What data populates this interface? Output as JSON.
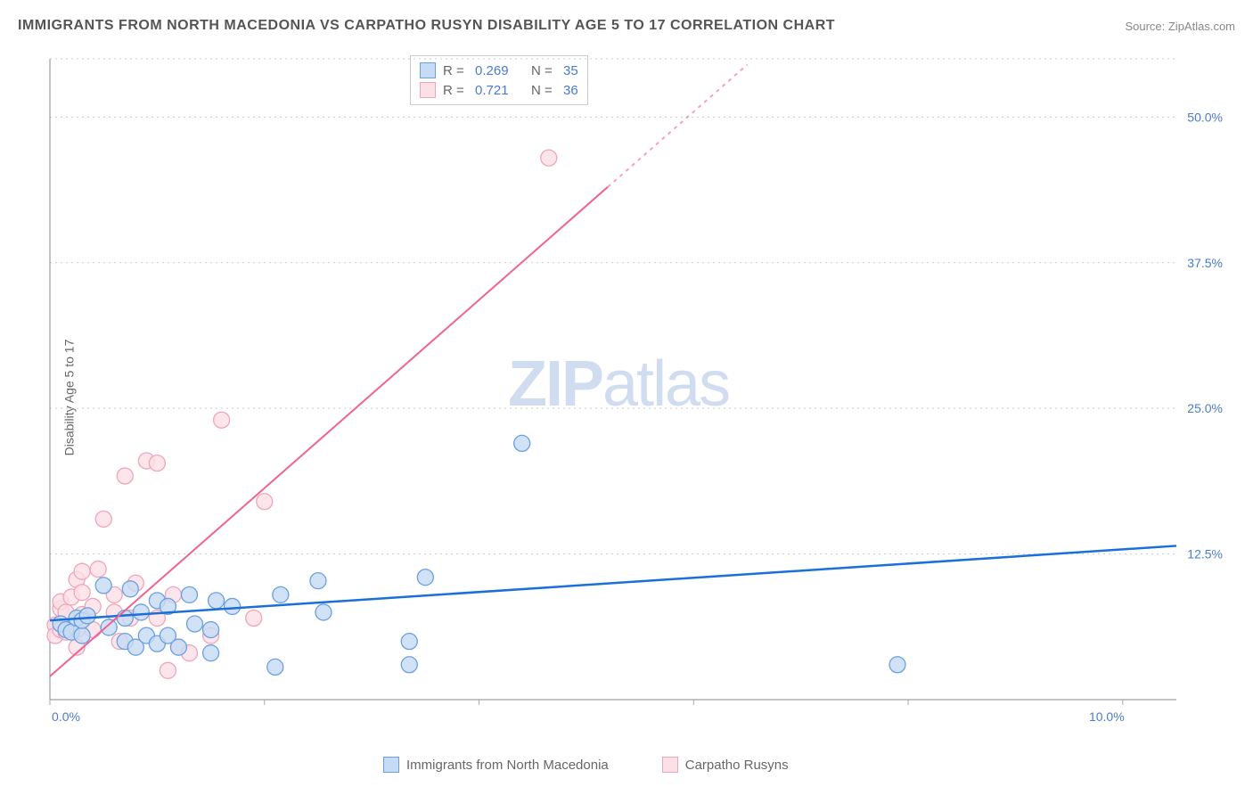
{
  "title": "IMMIGRANTS FROM NORTH MACEDONIA VS CARPATHO RUSYN DISABILITY AGE 5 TO 17 CORRELATION CHART",
  "source": "Source: ZipAtlas.com",
  "ylabel": "Disability Age 5 to 17",
  "watermark_bold": "ZIP",
  "watermark_rest": "atlas",
  "chart": {
    "type": "scatter",
    "xlim": [
      0,
      10.5
    ],
    "ylim": [
      0,
      55
    ],
    "yticks": [
      {
        "v": 12.5,
        "label": "12.5%"
      },
      {
        "v": 25.0,
        "label": "25.0%"
      },
      {
        "v": 37.5,
        "label": "37.5%"
      },
      {
        "v": 50.0,
        "label": "50.0%"
      }
    ],
    "xticks": [
      {
        "v": 0.0,
        "label": "0.0%"
      },
      {
        "v": 10.0,
        "label": "10.0%"
      }
    ],
    "xticks_minor": [
      2,
      4,
      6,
      8
    ],
    "grid_color": "#cccccc",
    "background_color": "#ffffff",
    "series": [
      {
        "key": "macedonia",
        "label": "Immigrants from North Macedonia",
        "R": "0.269",
        "N": "35",
        "color_fill": "#c6dbf4",
        "color_stroke": "#6aa0e2",
        "line_color": "#1a6fd8",
        "marker_r": 9,
        "trend": {
          "x1": 0,
          "y1": 6.8,
          "x2": 10.5,
          "y2": 13.2,
          "dashed_after_x": null
        },
        "points": [
          [
            0.1,
            6.5
          ],
          [
            0.15,
            6.0
          ],
          [
            0.2,
            5.8
          ],
          [
            0.25,
            7.0
          ],
          [
            0.3,
            5.5
          ],
          [
            0.3,
            6.8
          ],
          [
            0.35,
            7.2
          ],
          [
            0.5,
            9.8
          ],
          [
            0.55,
            6.2
          ],
          [
            0.7,
            5.0
          ],
          [
            0.7,
            7.0
          ],
          [
            0.75,
            9.5
          ],
          [
            0.8,
            4.5
          ],
          [
            0.85,
            7.5
          ],
          [
            0.9,
            5.5
          ],
          [
            1.0,
            8.5
          ],
          [
            1.0,
            4.8
          ],
          [
            1.1,
            8.0
          ],
          [
            1.1,
            5.5
          ],
          [
            1.2,
            4.5
          ],
          [
            1.3,
            9.0
          ],
          [
            1.35,
            6.5
          ],
          [
            1.5,
            4.0
          ],
          [
            1.5,
            6.0
          ],
          [
            1.55,
            8.5
          ],
          [
            1.7,
            8.0
          ],
          [
            2.1,
            2.8
          ],
          [
            2.15,
            9.0
          ],
          [
            2.5,
            10.2
          ],
          [
            2.55,
            7.5
          ],
          [
            3.35,
            5.0
          ],
          [
            3.5,
            10.5
          ],
          [
            3.35,
            3.0
          ],
          [
            4.4,
            22.0
          ],
          [
            7.9,
            3.0
          ]
        ]
      },
      {
        "key": "rusyn",
        "label": "Carpatho Rusyns",
        "R": "0.721",
        "N": "36",
        "color_fill": "#fbe0e6",
        "color_stroke": "#f0a5b8",
        "line_color": "#f06292",
        "marker_r": 9,
        "trend": {
          "x1": 0,
          "y1": 2.0,
          "x2": 6.5,
          "y2": 54.5,
          "dashed_after_x": 5.2
        },
        "points": [
          [
            0.05,
            6.4
          ],
          [
            0.05,
            5.5
          ],
          [
            0.1,
            7.8
          ],
          [
            0.1,
            6.0
          ],
          [
            0.1,
            8.4
          ],
          [
            0.15,
            5.8
          ],
          [
            0.15,
            7.5
          ],
          [
            0.2,
            8.8
          ],
          [
            0.25,
            6.0
          ],
          [
            0.25,
            10.3
          ],
          [
            0.25,
            4.5
          ],
          [
            0.3,
            7.3
          ],
          [
            0.3,
            9.2
          ],
          [
            0.3,
            11.0
          ],
          [
            0.4,
            6.0
          ],
          [
            0.4,
            8.0
          ],
          [
            0.45,
            11.2
          ],
          [
            0.5,
            15.5
          ],
          [
            0.6,
            7.5
          ],
          [
            0.6,
            9.0
          ],
          [
            0.65,
            5.0
          ],
          [
            0.7,
            19.2
          ],
          [
            0.75,
            7.0
          ],
          [
            0.8,
            10.0
          ],
          [
            0.9,
            20.5
          ],
          [
            1.0,
            20.3
          ],
          [
            1.0,
            7.0
          ],
          [
            1.1,
            2.5
          ],
          [
            1.15,
            9.0
          ],
          [
            1.2,
            4.5
          ],
          [
            1.3,
            4.0
          ],
          [
            1.5,
            5.5
          ],
          [
            1.6,
            24.0
          ],
          [
            1.9,
            7.0
          ],
          [
            2.0,
            17.0
          ],
          [
            4.65,
            46.5
          ]
        ]
      }
    ]
  },
  "stats_box": {
    "r_label": "R =",
    "n_label": "N ="
  }
}
